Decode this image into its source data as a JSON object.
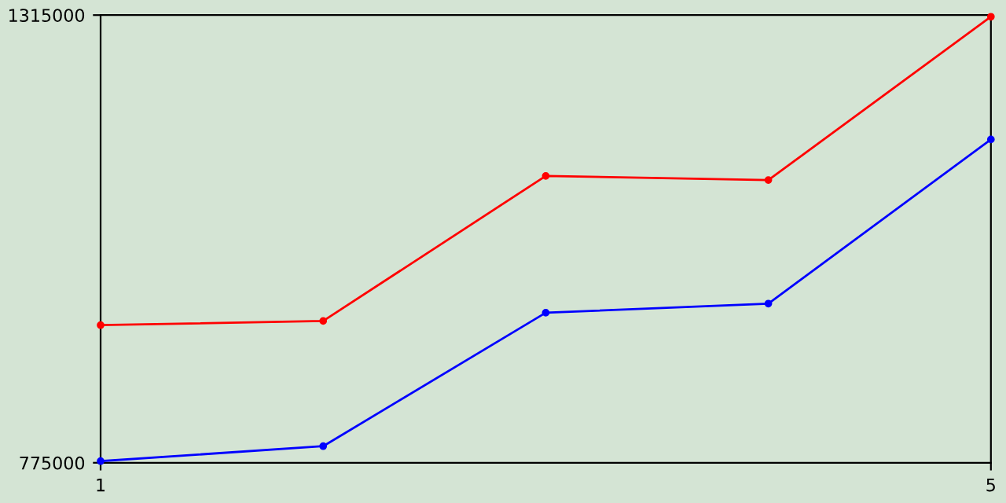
{
  "chart_data": {
    "type": "line",
    "x": [
      1,
      2,
      3,
      4,
      5
    ],
    "series": [
      {
        "color": "#ff0000",
        "values": [
          941000,
          946000,
          1121000,
          1116000,
          1313000
        ]
      },
      {
        "color": "#0000ff",
        "values": [
          777000,
          795000,
          956000,
          967000,
          1165000
        ]
      }
    ],
    "xlim": [
      1,
      5
    ],
    "xticks": [
      1,
      5
    ],
    "ylim": [
      775000,
      1315000
    ],
    "yticks": [
      775000,
      1315000
    ],
    "grid": false,
    "legend": false,
    "marker": "circle",
    "line_style": "solid"
  }
}
